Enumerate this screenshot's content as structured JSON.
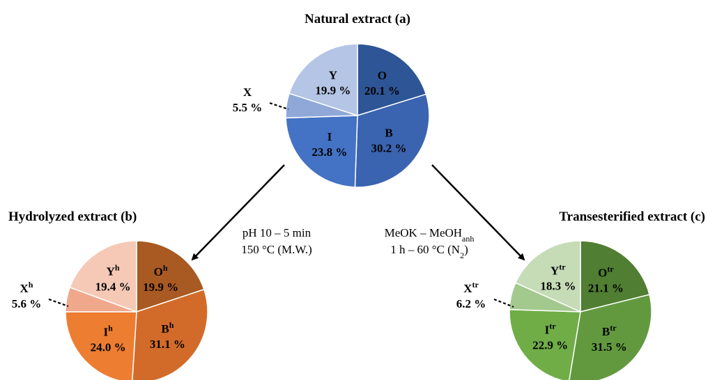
{
  "chart_data": [
    {
      "type": "pie",
      "title": "Natural extract (a)",
      "slices": [
        {
          "name": "O",
          "sup": "",
          "value": 20.1,
          "label": "20.1 %",
          "color": "#2e5596"
        },
        {
          "name": "B",
          "sup": "",
          "value": 30.2,
          "label": "30.2 %",
          "color": "#3a63b0"
        },
        {
          "name": "I",
          "sup": "",
          "value": 23.8,
          "label": "23.8 %",
          "color": "#4472c4"
        },
        {
          "name": "X",
          "sup": "",
          "value": 5.5,
          "label": "5.5 %",
          "color": "#8fa8d8"
        },
        {
          "name": "Y",
          "sup": "",
          "value": 19.9,
          "label": "19.9 %",
          "color": "#b4c5e6"
        }
      ]
    },
    {
      "type": "pie",
      "title": "Hydrolyzed extract (b)",
      "slices": [
        {
          "name": "O",
          "sup": "h",
          "value": 19.9,
          "label": "19.9 %",
          "color": "#a85a22"
        },
        {
          "name": "B",
          "sup": "h",
          "value": 31.1,
          "label": "31.1 %",
          "color": "#d26b2a"
        },
        {
          "name": "I",
          "sup": "h",
          "value": 24.0,
          "label": "24.0 %",
          "color": "#ed7d31"
        },
        {
          "name": "X",
          "sup": "h",
          "value": 5.6,
          "label": "5.6 %",
          "color": "#f0a88c"
        },
        {
          "name": "Y",
          "sup": "h",
          "value": 19.4,
          "label": "19.4 %",
          "color": "#f5c9b6"
        }
      ]
    },
    {
      "type": "pie",
      "title": "Transesterified extract (c)",
      "slices": [
        {
          "name": "O",
          "sup": "tr",
          "value": 21.1,
          "label": "21.1 %",
          "color": "#507e32"
        },
        {
          "name": "B",
          "sup": "tr",
          "value": 31.5,
          "label": "31.5 %",
          "color": "#62993e"
        },
        {
          "name": "I",
          "sup": "tr",
          "value": 22.9,
          "label": "22.9 %",
          "color": "#70ad47"
        },
        {
          "name": "X",
          "sup": "tr",
          "value": 6.2,
          "label": "6.2 %",
          "color": "#a4c98e"
        },
        {
          "name": "Y",
          "sup": "tr",
          "value": 18.3,
          "label": "18.3 %",
          "color": "#c5dcb7"
        }
      ]
    }
  ],
  "conditions": {
    "hydrolysis": {
      "line1": "pH 10 – 5 min",
      "line2": "150 °C (M.W.)"
    },
    "transesterification": {
      "line1_main": "MeOK – MeOH",
      "line1_sub": "anh",
      "line2_pre": "1 h – 60 °C (N",
      "line2_sub": "2",
      "line2_post": ")"
    }
  }
}
